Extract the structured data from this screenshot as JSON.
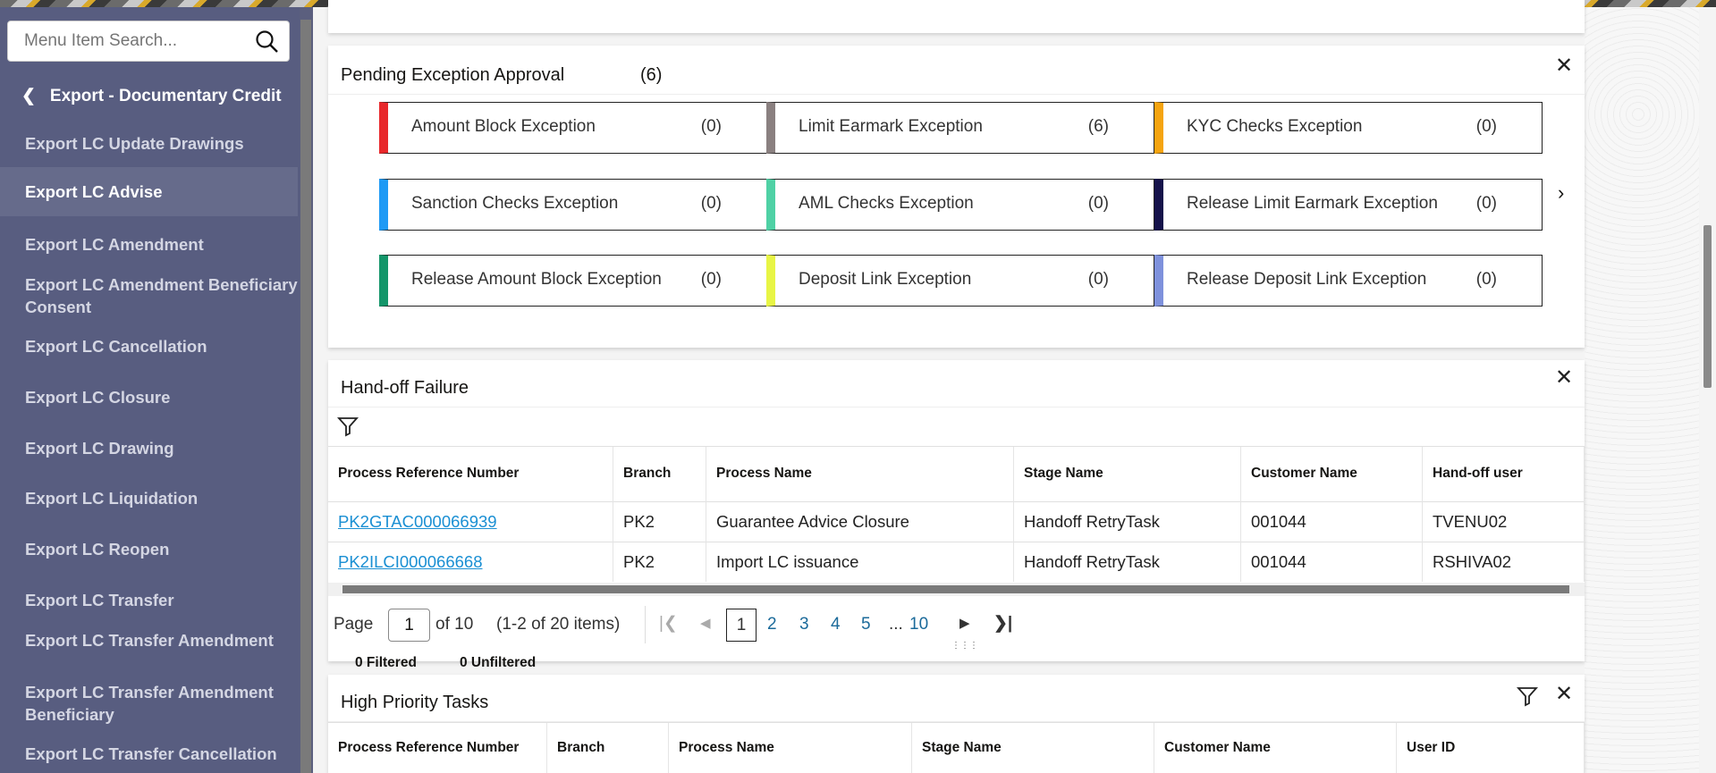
{
  "sidebar": {
    "search_placeholder": "Menu Item Search...",
    "back_label": "Export - Documentary Credit",
    "items": [
      "Export LC Update Drawings",
      "Export LC Advise",
      "Export LC Amendment",
      "Export LC Amendment Beneficiary Consent",
      "Export LC Cancellation",
      "Export LC Closure",
      "Export LC Drawing",
      "Export LC Liquidation",
      "Export LC Reopen",
      "Export LC Transfer",
      "Export LC Transfer Amendment",
      "Export LC Transfer Amendment Beneficiary",
      "Export LC Transfer Cancellation"
    ],
    "active_item": "Export LC Advise"
  },
  "pending": {
    "title": "Pending Exception Approval",
    "count": "(6)",
    "exceptions": [
      {
        "label": "Amount Block Exception",
        "count": "(0)",
        "color": "#e8282b"
      },
      {
        "label": "Limit Earmark Exception",
        "count": "(6)",
        "color": "#8a8080"
      },
      {
        "label": "KYC Checks Exception",
        "count": "(0)",
        "color": "#f5a410"
      },
      {
        "label": "Sanction Checks Exception",
        "count": "(0)",
        "color": "#1e9af5"
      },
      {
        "label": "AML Checks Exception",
        "count": "(0)",
        "color": "#4fd1a5"
      },
      {
        "label": "Release Limit Earmark Exception",
        "count": "(0)",
        "color": "#15124a"
      },
      {
        "label": "Release Amount Block Exception",
        "count": "(0)",
        "color": "#14966a"
      },
      {
        "label": "Deposit Link Exception",
        "count": "(0)",
        "color": "#e8f545"
      },
      {
        "label": "Release Deposit Link Exception",
        "count": "(0)",
        "color": "#7e91dc"
      }
    ]
  },
  "handoff": {
    "title": "Hand-off Failure",
    "columns": [
      "Process Reference Number",
      "Branch",
      "Process Name",
      "Stage Name",
      "Customer Name",
      "Hand-off user"
    ],
    "rows": [
      [
        "PK2GTAC000066939",
        "PK2",
        "Guarantee Advice Closure",
        "Handoff RetryTask",
        "001044",
        "TVENU02"
      ],
      [
        "PK2ILCI000066668",
        "PK2",
        "Import LC issuance",
        "Handoff RetryTask",
        "001044",
        "RSHIVA02"
      ]
    ],
    "pager": {
      "page_label": "Page",
      "page_value": "1",
      "of_label": "of 10",
      "items_label": "(1-2 of 20 items)",
      "pages": [
        "1",
        "2",
        "3",
        "4",
        "5",
        "...",
        "10"
      ]
    },
    "filtered": "0 Filtered",
    "unfiltered": "0 Unfiltered"
  },
  "high_priority": {
    "title": "High Priority Tasks",
    "columns": [
      "Process Reference Number",
      "Branch",
      "Process Name",
      "Stage Name",
      "Customer Name",
      "User ID"
    ]
  }
}
